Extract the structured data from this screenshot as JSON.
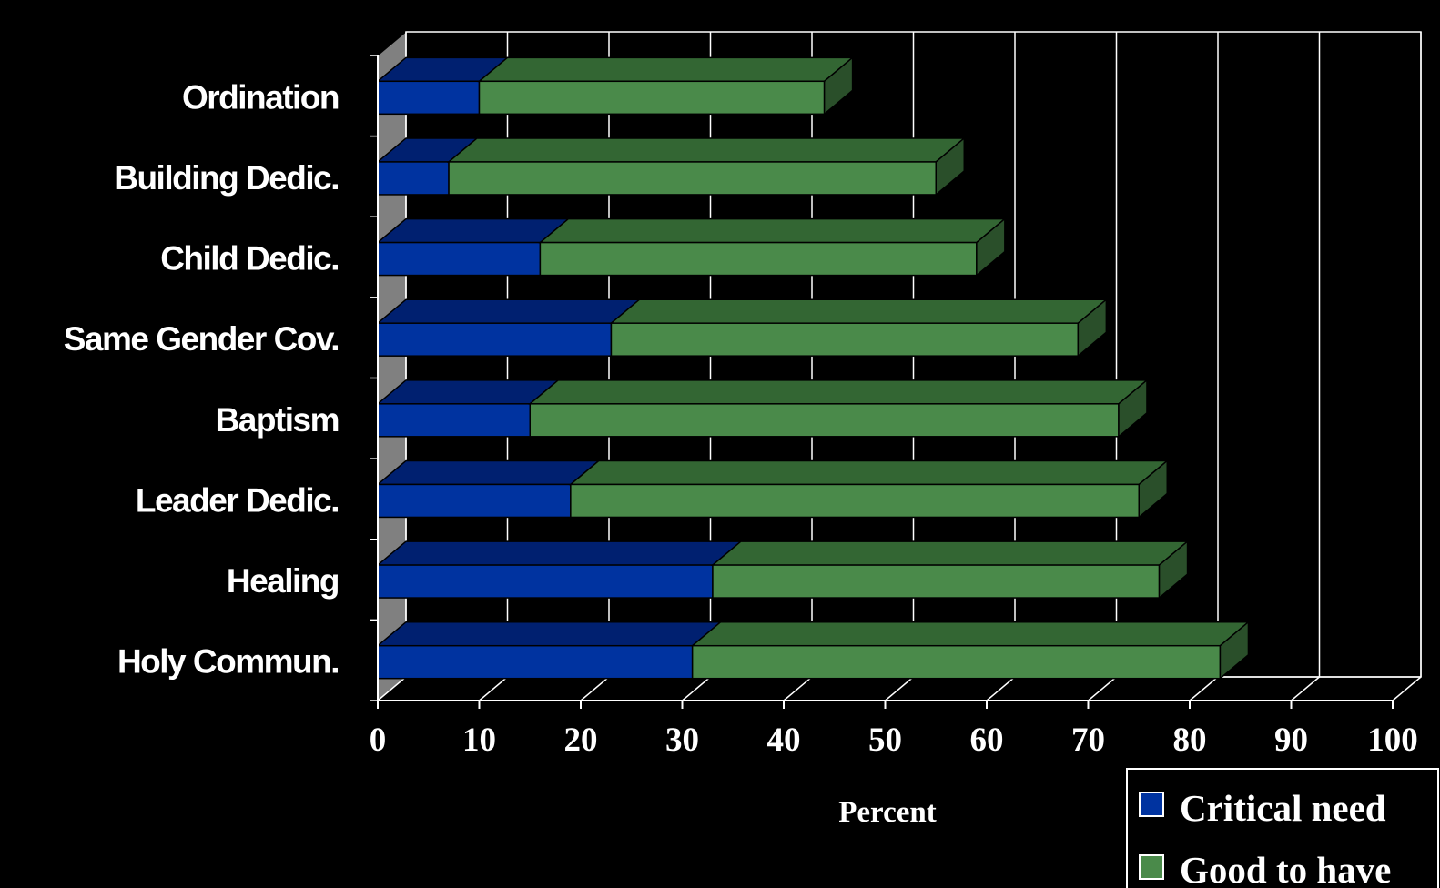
{
  "chart_data": {
    "type": "bar",
    "orientation": "horizontal",
    "stacked": true,
    "three_d": true,
    "categories": [
      "Ordination",
      "Building Dedic.",
      "Child Dedic.",
      "Same Gender Cov.",
      "Baptism",
      "Leader Dedic.",
      "Healing",
      "Holy Commun."
    ],
    "series": [
      {
        "name": "Critical need",
        "values": [
          10,
          7,
          16,
          23,
          15,
          19,
          33,
          31
        ]
      },
      {
        "name": "Good to have",
        "values": [
          34,
          48,
          43,
          46,
          58,
          56,
          44,
          52
        ]
      }
    ],
    "xlabel": "Percent",
    "ylabel": "",
    "xlim": [
      0,
      100
    ],
    "xticks": [
      "0",
      "10",
      "20",
      "30",
      "40",
      "50",
      "60",
      "70",
      "80",
      "90",
      "100"
    ],
    "grid": true,
    "legend": "bottom-right",
    "colors": {
      "background": "#000000",
      "plot_wall": "#000000",
      "gridline": "#ffffff",
      "side_wall": "#808080",
      "critical_front": "#0033A0",
      "critical_top": "#002070",
      "good_front": "#4A8A4A",
      "good_top": "#336633",
      "good_side": "#2A4F2A",
      "text": "#ffffff"
    }
  },
  "legend": {
    "items": [
      {
        "label": "Critical need",
        "color": "#0033A0"
      },
      {
        "label": "Good to have",
        "color": "#4A8A4A"
      }
    ]
  }
}
